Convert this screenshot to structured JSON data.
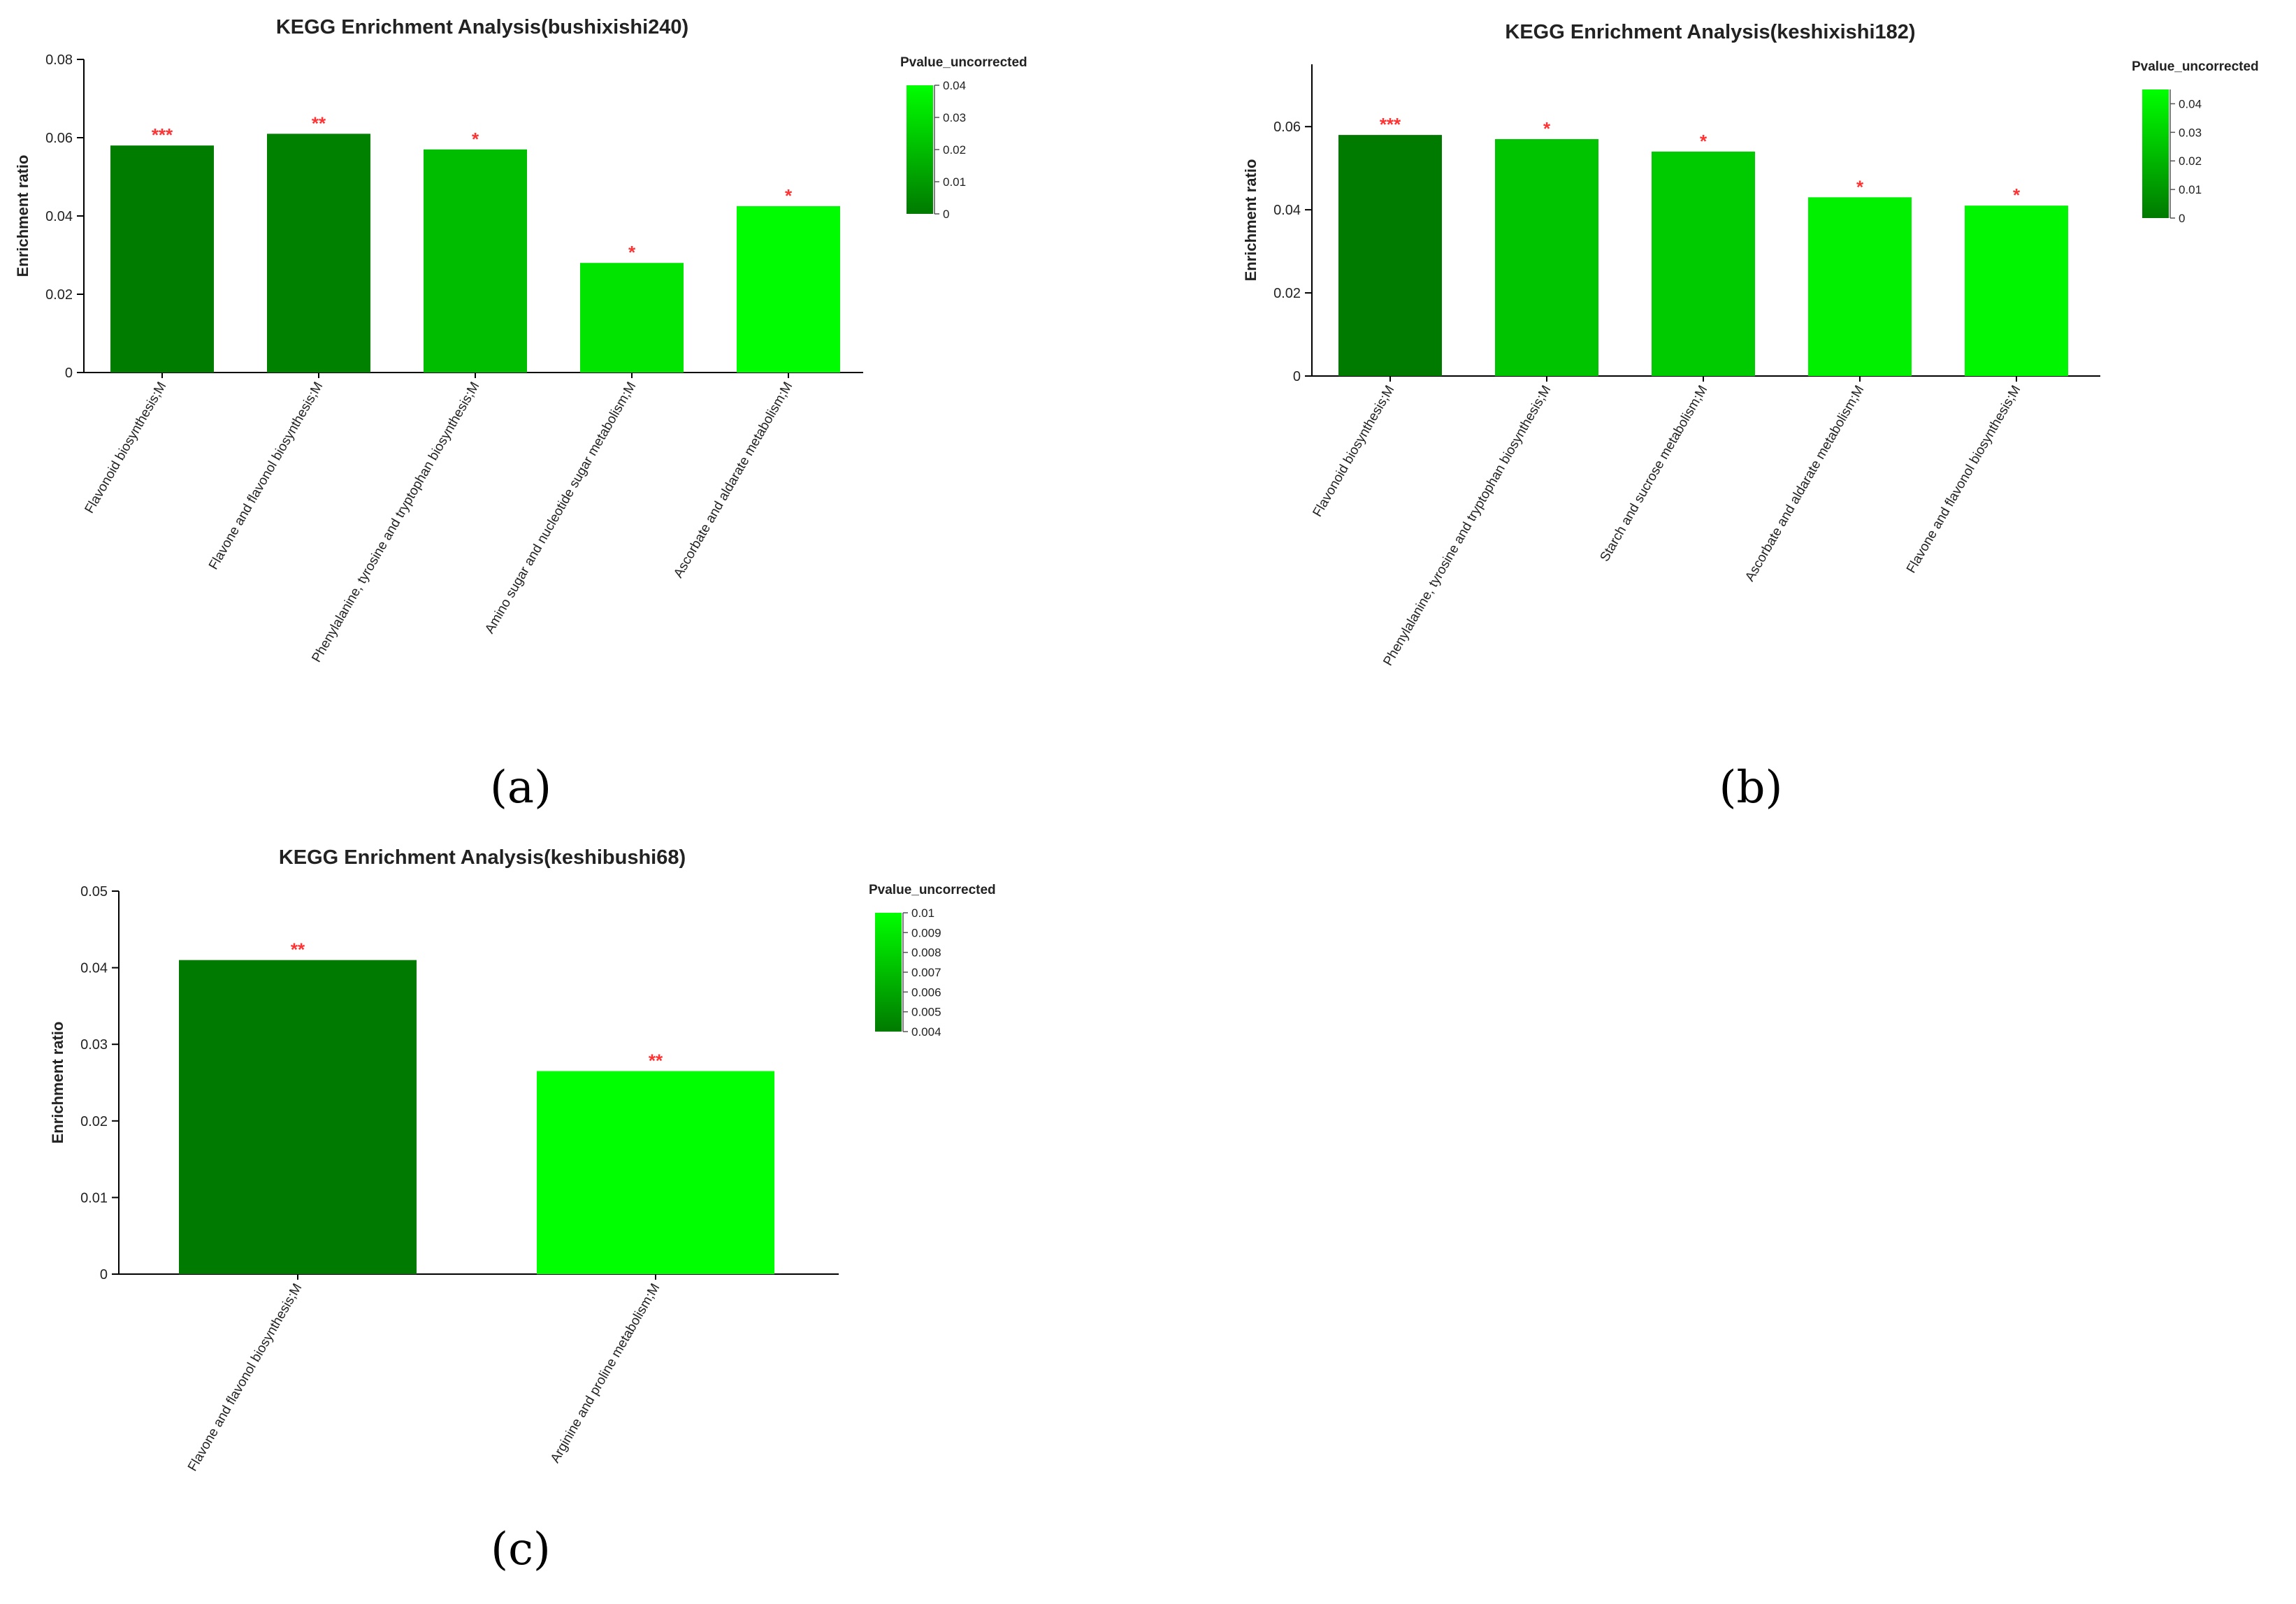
{
  "colors": {
    "dark_green": "#007a00",
    "bright_green": "#00ff00",
    "axis": "#000000",
    "star": "#ff3333"
  },
  "chart_data": [
    {
      "type": "bar",
      "title": "KEGG Enrichment Analysis(bushixishi240)",
      "caption": "(a)",
      "ylabel": "Enrichment ratio",
      "ylim": [
        0,
        0.08
      ],
      "yticks": [
        "0",
        "0.02",
        "0.04",
        "0.06",
        "0.08"
      ],
      "categories": [
        "Flavonoid biosynthesis;M",
        "Flavone and flavonol biosynthesis;M",
        "Phenylalanine, tyrosine and tryptophan biosynthesis;M",
        "Amino sugar and nucleotide sugar metabolism;M",
        "Ascorbate and aldarate metabolism;M"
      ],
      "values": [
        0.058,
        0.061,
        0.057,
        0.028,
        0.0425
      ],
      "pvalues": [
        0.0005,
        0.002,
        0.02,
        0.032,
        0.039
      ],
      "significance": [
        "***",
        "**",
        "*",
        "*",
        "*"
      ],
      "legend": {
        "title": "Pvalue_uncorrected",
        "ticks": [
          "0",
          "0.01",
          "0.02",
          "0.03",
          "0.04"
        ],
        "min": 0,
        "max": 0.04
      }
    },
    {
      "type": "bar",
      "title": "KEGG Enrichment Analysis(keshixishi182)",
      "caption": "(b)",
      "ylabel": "Enrichment ratio",
      "ylim": [
        0,
        0.075
      ],
      "yticks": [
        "0",
        "0.02",
        "0.04",
        "0.06"
      ],
      "categories": [
        "Flavonoid biosynthesis;M",
        "Phenylalanine, tyrosine and tryptophan biosynthesis;M",
        "Starch and sucrose metabolism;M",
        "Ascorbate and aldarate metabolism;M",
        "Flavone and flavonol biosynthesis;M"
      ],
      "values": [
        0.058,
        0.057,
        0.054,
        0.043,
        0.041
      ],
      "pvalues": [
        0.0005,
        0.025,
        0.027,
        0.04,
        0.042
      ],
      "significance": [
        "***",
        "*",
        "*",
        "*",
        "*"
      ],
      "legend": {
        "title": "Pvalue_uncorrected",
        "ticks": [
          "0",
          "0.01",
          "0.02",
          "0.03",
          "0.04"
        ],
        "min": 0,
        "max": 0.045
      }
    },
    {
      "type": "bar",
      "title": "KEGG Enrichment Analysis(keshibushi68)",
      "caption": "(c)",
      "ylabel": "Enrichment ratio",
      "ylim": [
        0,
        0.05
      ],
      "yticks": [
        "0",
        "0.01",
        "0.02",
        "0.03",
        "0.04",
        "0.05"
      ],
      "categories": [
        "Flavone and flavonol biosynthesis;M",
        "Arginine and proline metabolism;M"
      ],
      "values": [
        0.041,
        0.0265
      ],
      "pvalues": [
        0.004,
        0.01
      ],
      "significance": [
        "**",
        "**"
      ],
      "legend": {
        "title": "Pvalue_uncorrected",
        "ticks": [
          "0.004",
          "0.005",
          "0.006",
          "0.007",
          "0.008",
          "0.009",
          "0.01"
        ],
        "min": 0.004,
        "max": 0.01
      }
    }
  ]
}
